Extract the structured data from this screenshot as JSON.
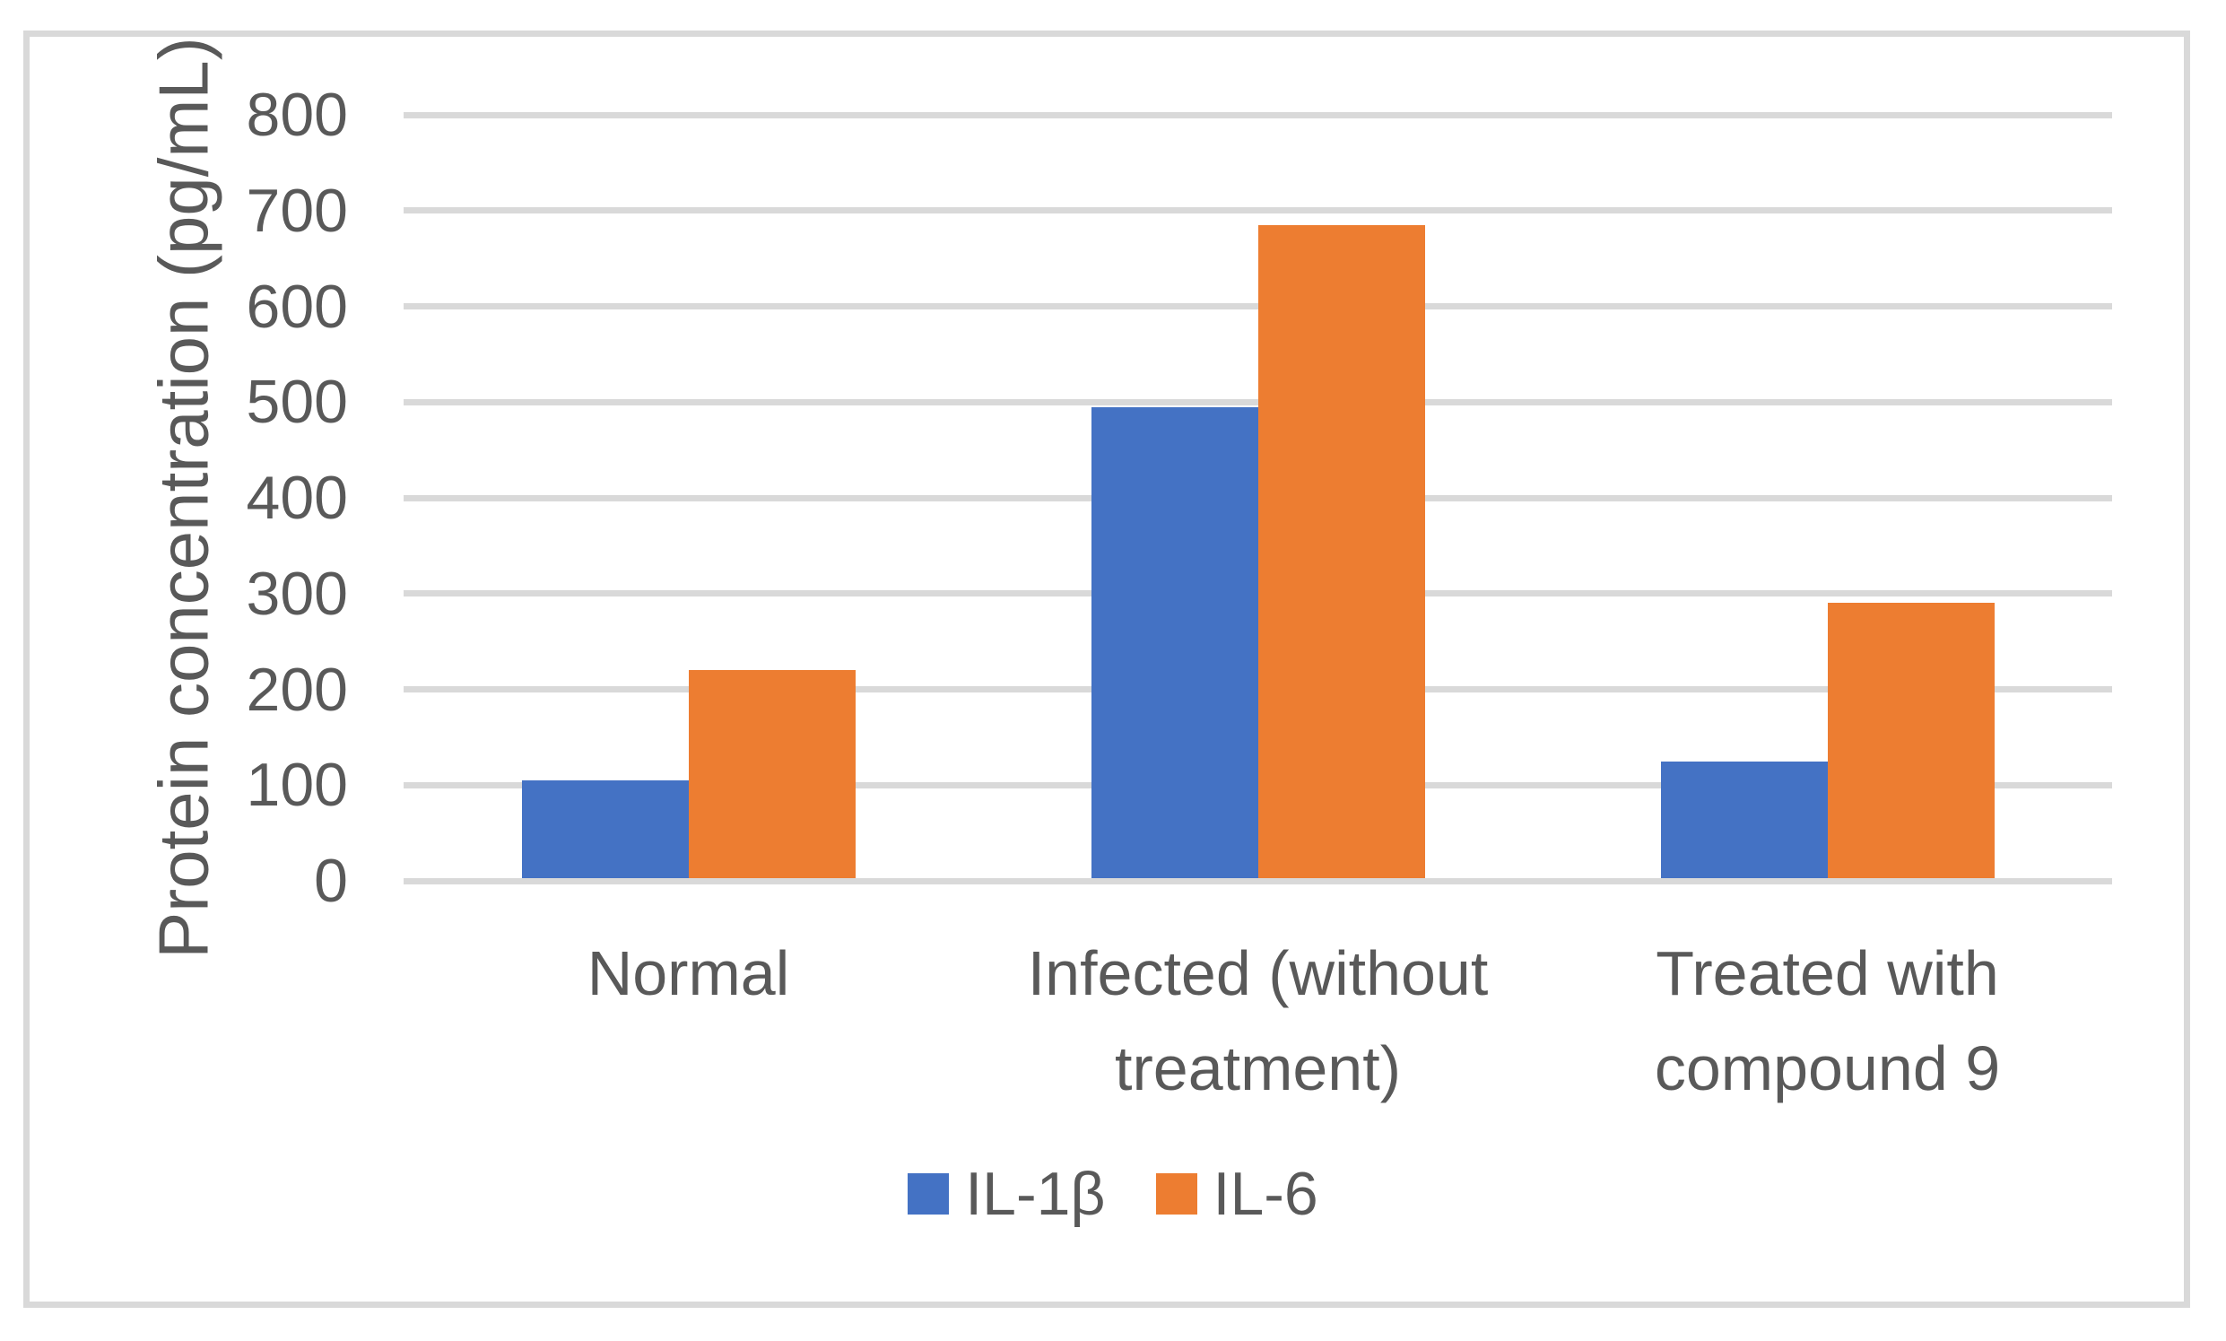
{
  "figure": {
    "kind": "excel-style clustered column chart",
    "background": "#FFFFFF",
    "border_color": "#D9D9D9"
  },
  "chart_data": {
    "type": "bar",
    "title": "",
    "xlabel": "",
    "ylabel": "Protein concentration (pg/mL)",
    "ylim": [
      0,
      800
    ],
    "ytick_step": 100,
    "ytick_labels": [
      "0",
      "100",
      "200",
      "300",
      "400",
      "500",
      "600",
      "700",
      "800"
    ],
    "grid": true,
    "legend_position": "bottom",
    "categories": [
      "Normal",
      "Infected (without treatment)",
      "Treated with compound 9"
    ],
    "category_label_lines": [
      [
        "Normal"
      ],
      [
        "Infected (without",
        "treatment)"
      ],
      [
        "Treated with",
        "compound 9"
      ]
    ],
    "series": [
      {
        "name": "IL-1β",
        "color": "#4472C4",
        "values": [
          105,
          495,
          125
        ]
      },
      {
        "name": "IL-6",
        "color": "#ED7D31",
        "values": [
          220,
          685,
          290
        ]
      }
    ],
    "colors": {
      "grid": "#D9D9D9",
      "axis_text": "#595959",
      "background": "#FFFFFF"
    }
  }
}
